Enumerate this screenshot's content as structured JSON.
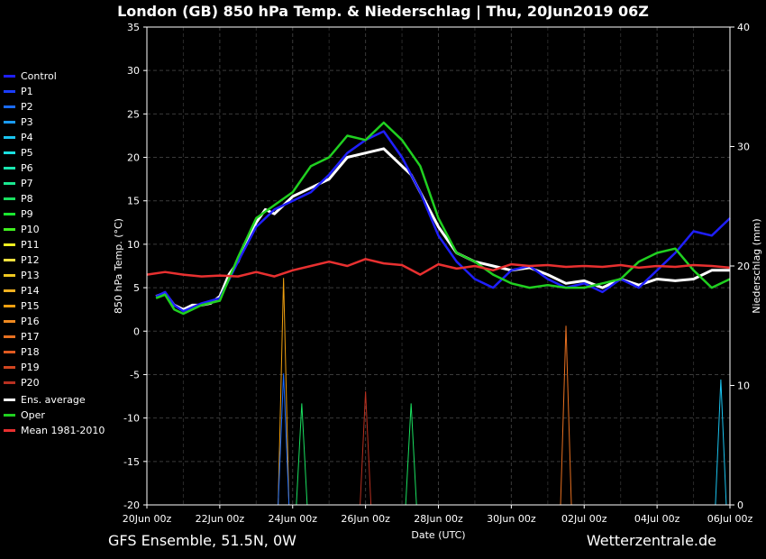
{
  "header": {
    "title": "London  (GB)  850 hPa Temp. & Niederschlag | Thu, 20Jun2019 06Z"
  },
  "footer": {
    "model": "GFS Ensemble, 51.5N, 0W",
    "site": "Wetterzentrale.de"
  },
  "legend": [
    {
      "label": "Control",
      "color": "#1f1fff"
    },
    {
      "label": "P1",
      "color": "#1a3dff"
    },
    {
      "label": "P2",
      "color": "#1a6bff"
    },
    {
      "label": "P3",
      "color": "#1a9cff"
    },
    {
      "label": "P4",
      "color": "#1ac4f0"
    },
    {
      "label": "P5",
      "color": "#1ae0e0"
    },
    {
      "label": "P6",
      "color": "#1ae8b0"
    },
    {
      "label": "P7",
      "color": "#1ae890"
    },
    {
      "label": "P8",
      "color": "#1ae060"
    },
    {
      "label": "P9",
      "color": "#1ae830"
    },
    {
      "label": "P10",
      "color": "#40f020"
    },
    {
      "label": "P11",
      "color": "#f0f020"
    },
    {
      "label": "P12",
      "color": "#f0e040"
    },
    {
      "label": "P13",
      "color": "#f0c820"
    },
    {
      "label": "P14",
      "color": "#f0b020"
    },
    {
      "label": "P15",
      "color": "#f0a010"
    },
    {
      "label": "P16",
      "color": "#f08a20"
    },
    {
      "label": "P17",
      "color": "#e87020"
    },
    {
      "label": "P18",
      "color": "#e05a20"
    },
    {
      "label": "P19",
      "color": "#d04520"
    },
    {
      "label": "P20",
      "color": "#b83020"
    },
    {
      "label": "Ens. average",
      "color": "#ffffff"
    },
    {
      "label": "Oper",
      "color": "#20d020"
    },
    {
      "label": "Mean 1981-2010",
      "color": "#e83030"
    }
  ],
  "chart_data": {
    "type": "line",
    "title": "London  (GB)  850 hPa Temp. & Niederschlag | Thu, 20Jun2019 06Z",
    "xlabel": "Date (UTC)",
    "ylabel": "850 hPa Temp. (°C)",
    "y2label": "Niederschlag (mm)",
    "x_ticks": [
      "20Jun 00z",
      "22Jun 00z",
      "24Jun 00z",
      "26Jun 00z",
      "28Jun 00z",
      "30Jun 00z",
      "02Jul 00z",
      "04Jul 00z",
      "06Jul 00z"
    ],
    "y_ticks": [
      35,
      30,
      25,
      20,
      15,
      10,
      5,
      0,
      -5,
      -10,
      -15,
      -20
    ],
    "y2_ticks": [
      40,
      30,
      20,
      10,
      0
    ],
    "ylim": [
      -20,
      35
    ],
    "y2lim": [
      0,
      40
    ],
    "x_range_hours": [
      0,
      384
    ],
    "grid": true,
    "legend_position": "left",
    "series": [
      {
        "name": "Ens. average",
        "color": "#ffffff",
        "hours": [
          6,
          12,
          18,
          24,
          30,
          36,
          42,
          48,
          54,
          60,
          66,
          72,
          78,
          84,
          96,
          108,
          120,
          132,
          144,
          156,
          168,
          174,
          180,
          192,
          204,
          216,
          228,
          240,
          252,
          264,
          276,
          288,
          300,
          312,
          324,
          336,
          348,
          360,
          372,
          384
        ],
        "temp": [
          4.0,
          4.4,
          3.0,
          2.5,
          3.0,
          3.0,
          3.2,
          4.0,
          6.5,
          8.0,
          10.5,
          12.5,
          14.0,
          13.5,
          15.5,
          16.5,
          17.5,
          20.0,
          20.5,
          21.0,
          19.0,
          18.0,
          16.0,
          12.0,
          9.0,
          8.0,
          7.5,
          7.0,
          7.3,
          6.5,
          5.5,
          5.8,
          5.0,
          6.0,
          5.3,
          6.0,
          5.8,
          6.0,
          7.0,
          7.0
        ]
      },
      {
        "name": "Control",
        "color": "#1f1fff",
        "hours": [
          6,
          12,
          18,
          24,
          36,
          48,
          60,
          72,
          84,
          96,
          108,
          120,
          132,
          144,
          156,
          168,
          180,
          192,
          204,
          216,
          228,
          240,
          252,
          264,
          276,
          288,
          300,
          312,
          324,
          336,
          348,
          360,
          372,
          384
        ],
        "temp": [
          4.0,
          4.5,
          3.0,
          2.3,
          3.2,
          3.8,
          8.0,
          12.0,
          14.0,
          15.0,
          16.0,
          18.0,
          20.5,
          22.0,
          23.0,
          20.0,
          16.0,
          11.0,
          8.0,
          6.0,
          5.0,
          7.0,
          7.5,
          6.0,
          5.0,
          5.5,
          4.5,
          6.0,
          5.0,
          7.0,
          9.0,
          11.5,
          11.0,
          13.0
        ]
      },
      {
        "name": "Oper",
        "color": "#20d020",
        "hours": [
          6,
          12,
          18,
          24,
          36,
          48,
          60,
          72,
          84,
          96,
          108,
          120,
          132,
          144,
          156,
          168,
          180,
          192,
          204,
          216,
          228,
          240,
          252,
          264,
          276,
          288,
          300,
          312,
          324,
          336,
          348,
          360,
          372,
          384
        ],
        "temp": [
          3.8,
          4.2,
          2.5,
          2.0,
          3.0,
          3.5,
          8.5,
          13.0,
          14.5,
          16.0,
          19.0,
          20.0,
          22.5,
          22.0,
          24.0,
          22.0,
          19.0,
          13.0,
          9.0,
          8.0,
          6.5,
          5.5,
          5.0,
          5.3,
          5.0,
          5.0,
          5.5,
          6.0,
          8.0,
          9.0,
          9.5,
          7.0,
          5.0,
          6.0
        ]
      },
      {
        "name": "Mean 1981-2010",
        "color": "#e83030",
        "hours": [
          0,
          12,
          24,
          36,
          48,
          60,
          72,
          84,
          96,
          108,
          120,
          132,
          144,
          156,
          168,
          180,
          192,
          204,
          216,
          228,
          240,
          252,
          264,
          276,
          288,
          300,
          312,
          324,
          336,
          348,
          360,
          372,
          384
        ],
        "temp": [
          6.5,
          6.8,
          6.5,
          6.3,
          6.4,
          6.3,
          6.8,
          6.3,
          7.0,
          7.5,
          8.0,
          7.5,
          8.3,
          7.8,
          7.6,
          6.5,
          7.7,
          7.2,
          7.5,
          7.0,
          7.7,
          7.5,
          7.6,
          7.4,
          7.5,
          7.4,
          7.6,
          7.3,
          7.5,
          7.4,
          7.6,
          7.5,
          7.3
        ]
      }
    ],
    "precipitation_peaks_mm": [
      {
        "hour": 90,
        "value": 19,
        "color": "#f0a010"
      },
      {
        "hour": 90,
        "value": 11,
        "color": "#1a6bff"
      },
      {
        "hour": 102,
        "value": 8.5,
        "color": "#1ae060"
      },
      {
        "hour": 144,
        "value": 9.5,
        "color": "#b83020"
      },
      {
        "hour": 174,
        "value": 8.5,
        "color": "#1ae060"
      },
      {
        "hour": 276,
        "value": 15,
        "color": "#e87020"
      },
      {
        "hour": 378,
        "value": 10.5,
        "color": "#1ac4f0"
      }
    ]
  }
}
